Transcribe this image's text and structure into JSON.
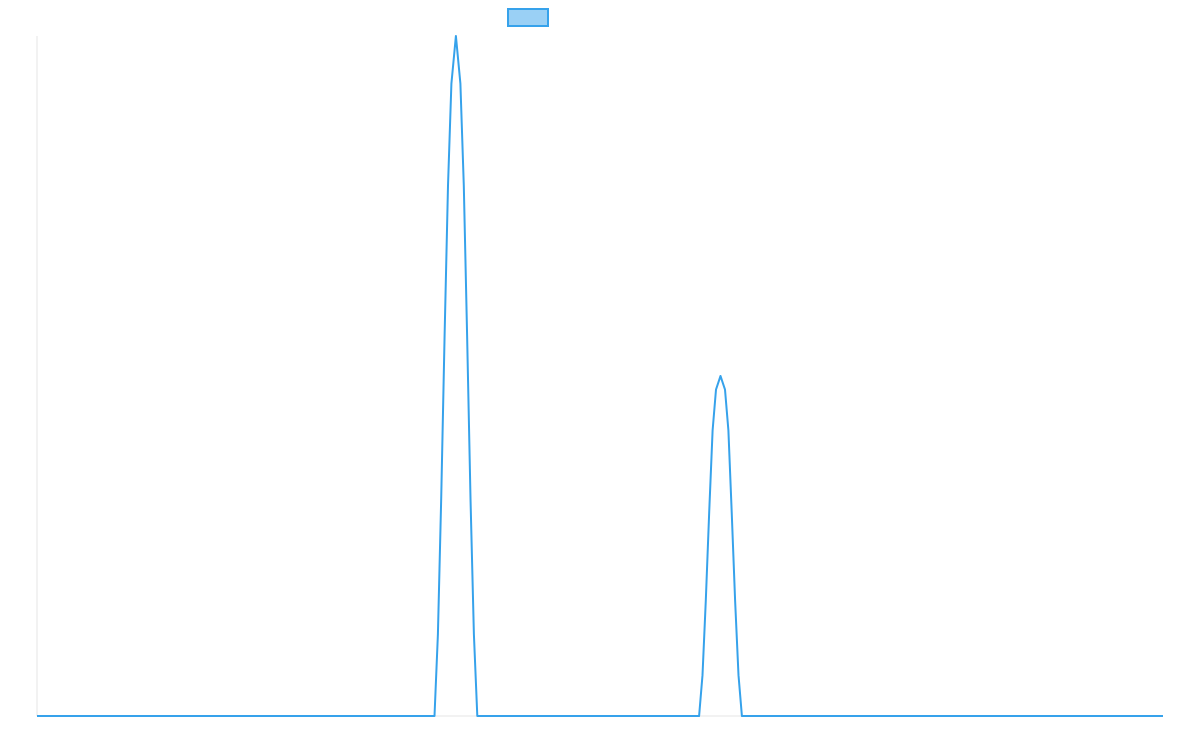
{
  "chart_data": {
    "type": "line",
    "title": "",
    "xlabel": "",
    "ylabel": "",
    "grid": false,
    "legend": {
      "position": "top-center",
      "entries": [
        {
          "label": "",
          "color": "#36a2eb",
          "fill": "#9ad0f5"
        }
      ]
    },
    "xlim": [
      0,
      100
    ],
    "ylim": [
      0,
      1
    ],
    "series": [
      {
        "color": "#36a2eb",
        "points": [
          [
            0,
            0
          ],
          [
            35.3,
            0
          ],
          [
            35.6,
            0.12
          ],
          [
            35.9,
            0.32
          ],
          [
            36.2,
            0.56
          ],
          [
            36.5,
            0.78
          ],
          [
            36.8,
            0.93
          ],
          [
            37.2,
            1.0
          ],
          [
            37.6,
            0.93
          ],
          [
            37.9,
            0.78
          ],
          [
            38.2,
            0.56
          ],
          [
            38.5,
            0.32
          ],
          [
            38.8,
            0.12
          ],
          [
            39.1,
            0
          ],
          [
            58.8,
            0
          ],
          [
            59.1,
            0.06
          ],
          [
            59.4,
            0.17
          ],
          [
            59.7,
            0.3
          ],
          [
            60.0,
            0.42
          ],
          [
            60.3,
            0.48
          ],
          [
            60.7,
            0.5
          ],
          [
            61.1,
            0.48
          ],
          [
            61.4,
            0.42
          ],
          [
            61.7,
            0.3
          ],
          [
            62.0,
            0.17
          ],
          [
            62.3,
            0.06
          ],
          [
            62.6,
            0
          ],
          [
            100,
            0
          ]
        ]
      }
    ]
  }
}
